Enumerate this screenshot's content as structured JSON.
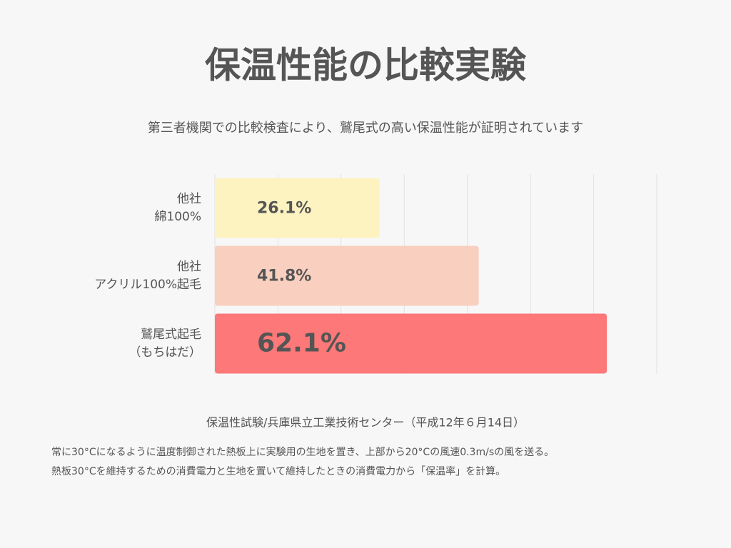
{
  "chart_data": {
    "type": "bar",
    "orientation": "horizontal",
    "title": "保温性能の比較実験",
    "subtitle": "第三者機関での比較検査により、鷲尾式の高い保温性能が証明されています",
    "categories": [
      "他社\n綿100%",
      "他社\nアクリル100%起毛",
      "鷲尾式起毛\n（もちはだ）"
    ],
    "values": [
      26.1,
      41.8,
      62.1
    ],
    "value_labels": [
      "26.1%",
      "41.8%",
      "62.1%"
    ],
    "colors": [
      "#fdf3c1",
      "#f9cfbf",
      "#fd7878"
    ],
    "xlim": [
      0,
      70
    ],
    "xticks": [
      0,
      10,
      20,
      30,
      40,
      50,
      60,
      70
    ],
    "grid": true,
    "source": "保温性試験/兵庫県立工業技術センター（平成12年６月14日）",
    "notes": [
      "常に30°Cになるように温度制御された熱板上に実験用の生地を置き、上部から20°Cの風速0.3m/sの風を送る。",
      "熱板30°Cを維持するための消費電力と生地を置いて維持したときの消費電力から「保温率」を計算。"
    ]
  }
}
